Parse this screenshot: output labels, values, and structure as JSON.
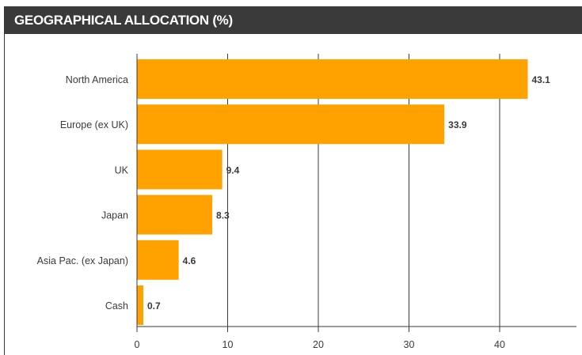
{
  "header": {
    "title": "GEOGRAPHICAL ALLOCATION (%)"
  },
  "colors": {
    "header_bg": "#3a3a3a",
    "bar": "#ffa200",
    "text": "#3a3a3a"
  },
  "chart_data": {
    "type": "bar",
    "orientation": "horizontal",
    "title": "GEOGRAPHICAL ALLOCATION (%)",
    "categories": [
      "North America",
      "Europe (ex UK)",
      "UK",
      "Japan",
      "Asia Pac. (ex Japan)",
      "Cash"
    ],
    "values": [
      43.1,
      33.9,
      9.4,
      8.3,
      4.6,
      0.7
    ],
    "value_labels": [
      "43.1",
      "33.9",
      "9.4",
      "8.3",
      "4.6",
      "0.7"
    ],
    "xticks": [
      0,
      10,
      20,
      30,
      40
    ],
    "xtick_labels": [
      "0",
      "10",
      "20",
      "30",
      "40"
    ],
    "xlim": [
      0,
      48.5
    ],
    "grid": "vertical",
    "legend": "none"
  }
}
